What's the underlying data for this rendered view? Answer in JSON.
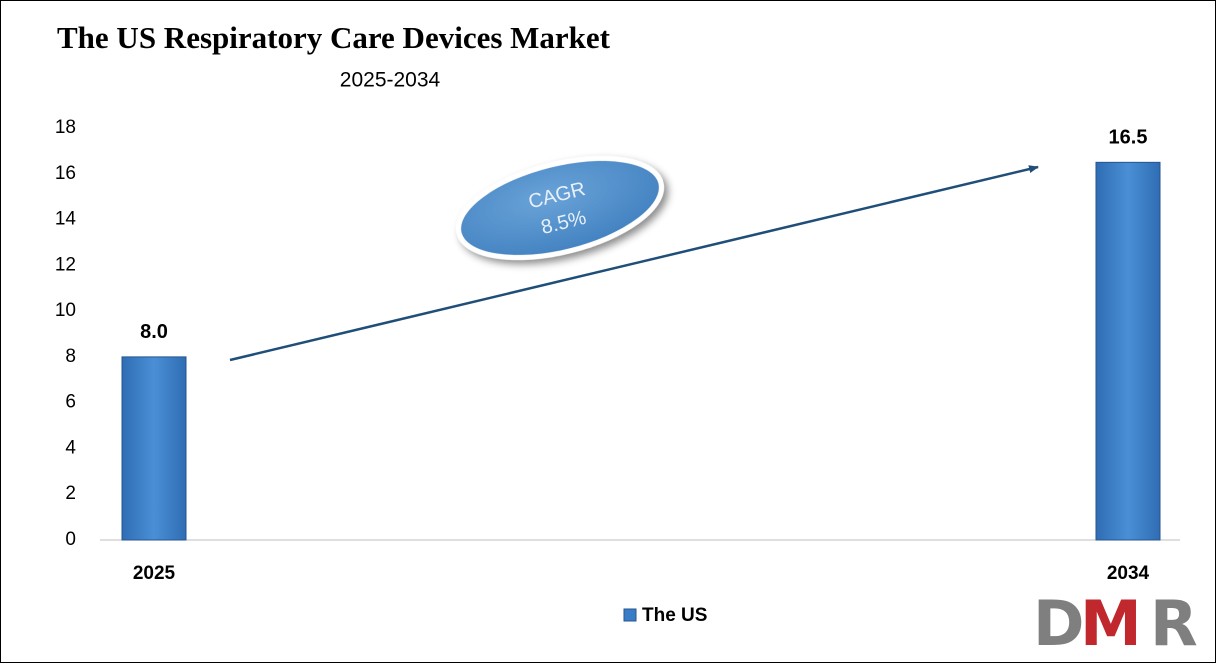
{
  "chart_data": {
    "type": "bar",
    "title": "The US Respiratory Care Devices Market",
    "subtitle": "2025-2034",
    "categories": [
      "2025",
      "2034"
    ],
    "series": [
      {
        "name": "The US",
        "color": "#3a7dc6",
        "values": [
          8,
          16.5
        ],
        "value_labels": [
          "8.0",
          "16.5"
        ]
      }
    ],
    "ylim": [
      0,
      18
    ],
    "yticks": [
      0,
      2,
      4,
      6,
      8,
      10,
      12,
      14,
      16,
      18
    ],
    "grid": false,
    "legend": "bottom",
    "annotations": {
      "cagr_label": "CAGR",
      "cagr_value": "8.5%"
    }
  },
  "logo": [
    "D",
    "M",
    "R"
  ]
}
